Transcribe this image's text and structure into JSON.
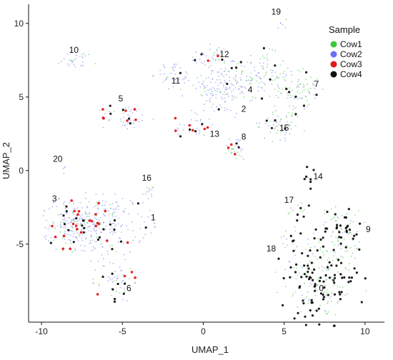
{
  "chart_data": {
    "type": "scatter",
    "xlabel": "UMAP_1",
    "ylabel": "UMAP_2",
    "xlim": [
      -10.8,
      11.2
    ],
    "ylim": [
      -10.3,
      11.3
    ],
    "x_ticks": [
      -10,
      -5,
      0,
      5,
      10
    ],
    "y_ticks": [
      -5,
      0,
      5,
      10
    ],
    "grid": false,
    "legend": {
      "title": "Sample",
      "position": "top-right",
      "entries": [
        {
          "name": "Cow1",
          "color": "#3cc83c"
        },
        {
          "name": "Cow2",
          "color": "#6670ee"
        },
        {
          "name": "Cow3",
          "color": "#e31a1c"
        },
        {
          "name": "Cow4",
          "color": "#111111"
        }
      ]
    },
    "series": [
      {
        "name": "Cow1",
        "color": "#3cc83c"
      },
      {
        "name": "Cow2",
        "color": "#6670ee"
      },
      {
        "name": "Cow3",
        "color": "#e31a1c"
      },
      {
        "name": "Cow4",
        "color": "#111111"
      }
    ],
    "clusters": [
      {
        "label": "0",
        "x": 7.3,
        "y": -7.3,
        "rx": 2.2,
        "ry": 2.6,
        "mix": [
          0.35,
          0.1,
          0.0,
          0.55
        ]
      },
      {
        "label": "1",
        "x": -6.5,
        "y": -3.7,
        "rx": 2.7,
        "ry": 1.9,
        "mix": [
          0.15,
          0.7,
          0.05,
          0.1
        ]
      },
      {
        "label": "2",
        "x": 1.0,
        "y": 5.5,
        "rx": 1.8,
        "ry": 1.6,
        "mix": [
          0.15,
          0.8,
          0.0,
          0.05
        ]
      },
      {
        "label": "3",
        "x": -8.0,
        "y": -3.5,
        "rx": 1.5,
        "ry": 1.6,
        "mix": [
          0.15,
          0.55,
          0.2,
          0.1
        ]
      },
      {
        "label": "4",
        "x": 3.6,
        "y": 6.5,
        "rx": 1.5,
        "ry": 1.4,
        "mix": [
          0.45,
          0.45,
          0.0,
          0.1
        ]
      },
      {
        "label": "5",
        "x": -4.8,
        "y": 3.6,
        "rx": 1.4,
        "ry": 0.8,
        "mix": [
          0.05,
          0.6,
          0.2,
          0.15
        ]
      },
      {
        "label": "6",
        "x": -5.5,
        "y": -7.5,
        "rx": 1.0,
        "ry": 1.3,
        "mix": [
          0.2,
          0.5,
          0.1,
          0.2
        ]
      },
      {
        "label": "7",
        "x": 6.0,
        "y": 5.5,
        "rx": 1.2,
        "ry": 1.3,
        "mix": [
          0.55,
          0.3,
          0.0,
          0.15
        ]
      },
      {
        "label": "8",
        "x": 2.0,
        "y": 1.5,
        "rx": 0.8,
        "ry": 0.8,
        "mix": [
          0.35,
          0.4,
          0.15,
          0.1
        ]
      },
      {
        "label": "9",
        "x": 8.5,
        "y": -4.2,
        "rx": 1.2,
        "ry": 1.6,
        "mix": [
          0.45,
          0.1,
          0.0,
          0.45
        ]
      },
      {
        "label": "10",
        "x": -7.8,
        "y": 7.5,
        "rx": 1.1,
        "ry": 0.5,
        "mix": [
          0.3,
          0.7,
          0.0,
          0.0
        ]
      },
      {
        "label": "11",
        "x": -1.8,
        "y": 6.5,
        "rx": 1.0,
        "ry": 0.8,
        "mix": [
          0.1,
          0.85,
          0.0,
          0.05
        ]
      },
      {
        "label": "12",
        "x": 0.5,
        "y": 7.8,
        "rx": 1.2,
        "ry": 0.6,
        "mix": [
          0.2,
          0.6,
          0.1,
          0.1
        ]
      },
      {
        "label": "13",
        "x": -0.5,
        "y": 3.0,
        "rx": 1.2,
        "ry": 0.7,
        "mix": [
          0.05,
          0.55,
          0.25,
          0.15
        ]
      },
      {
        "label": "14",
        "x": 6.6,
        "y": -0.5,
        "rx": 0.3,
        "ry": 0.9,
        "mix": [
          0.1,
          0.05,
          0.0,
          0.85
        ]
      },
      {
        "label": "15",
        "x": 4.8,
        "y": 3.2,
        "rx": 1.2,
        "ry": 1.0,
        "mix": [
          0.4,
          0.5,
          0.0,
          0.1
        ]
      },
      {
        "label": "16",
        "x": -3.5,
        "y": -1.4,
        "rx": 0.6,
        "ry": 0.4,
        "mix": [
          0.3,
          0.7,
          0.0,
          0.0
        ]
      },
      {
        "label": "17",
        "x": 6.0,
        "y": -2.8,
        "rx": 0.6,
        "ry": 0.6,
        "mix": [
          0.4,
          0.1,
          0.0,
          0.5
        ]
      },
      {
        "label": "18",
        "x": 5.3,
        "y": -4.5,
        "rx": 0.5,
        "ry": 0.6,
        "mix": [
          0.5,
          0.2,
          0.0,
          0.3
        ]
      },
      {
        "label": "19",
        "x": 4.8,
        "y": 10.0,
        "rx": 0.35,
        "ry": 0.3,
        "mix": [
          0.3,
          0.7,
          0.0,
          0.0
        ]
      },
      {
        "label": "20",
        "x": -8.6,
        "y": 0.1,
        "rx": 0.3,
        "ry": 0.25,
        "mix": [
          0.2,
          0.8,
          0.0,
          0.0
        ]
      }
    ],
    "cluster_labels": [
      {
        "text": "19",
        "x": 4.5,
        "y": 10.8
      },
      {
        "text": "10",
        "x": -8.0,
        "y": 8.2
      },
      {
        "text": "12",
        "x": 1.3,
        "y": 7.9
      },
      {
        "text": "11",
        "x": -1.7,
        "y": 6.1
      },
      {
        "text": "4",
        "x": 2.9,
        "y": 5.5
      },
      {
        "text": "7",
        "x": 7.0,
        "y": 5.9
      },
      {
        "text": "5",
        "x": -5.1,
        "y": 4.9
      },
      {
        "text": "2",
        "x": 2.5,
        "y": 4.2
      },
      {
        "text": "15",
        "x": 5.0,
        "y": 2.9
      },
      {
        "text": "13",
        "x": 0.7,
        "y": 2.5
      },
      {
        "text": "8",
        "x": 2.5,
        "y": 2.3
      },
      {
        "text": "20",
        "x": -9.0,
        "y": 0.8
      },
      {
        "text": "16",
        "x": -3.5,
        "y": -0.5
      },
      {
        "text": "14",
        "x": 7.1,
        "y": -0.4
      },
      {
        "text": "3",
        "x": -9.2,
        "y": -1.9
      },
      {
        "text": "17",
        "x": 5.3,
        "y": -2.0
      },
      {
        "text": "1",
        "x": -3.1,
        "y": -3.2
      },
      {
        "text": "9",
        "x": 10.2,
        "y": -4.0
      },
      {
        "text": "18",
        "x": 4.2,
        "y": -5.3
      },
      {
        "text": "6",
        "x": -4.6,
        "y": -8.0
      },
      {
        "text": "0",
        "x": 7.3,
        "y": -8.0
      }
    ]
  }
}
